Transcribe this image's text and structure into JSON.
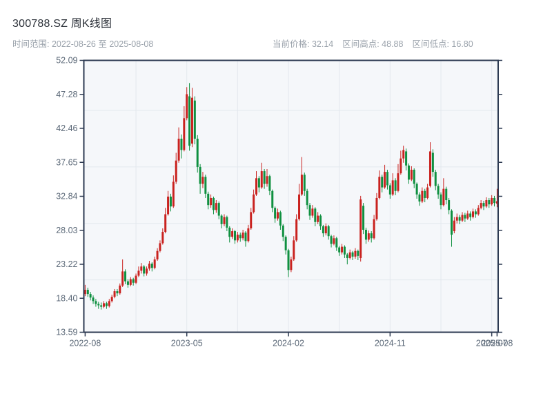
{
  "header": {
    "title": "300788.SZ 周K线图",
    "date_range": "时间范围: 2022-08-26 至 2025-08-08",
    "stats": [
      "当前价格: 32.14",
      "区间高点: 48.88",
      "区间低点: 16.80"
    ]
  },
  "chart_data": {
    "type": "candlestick",
    "title": "300788.SZ 周K线图",
    "frequency": "weekly",
    "date_start": "2022-08-26",
    "date_end": "2025-08-08",
    "current_price": 32.14,
    "period_high": 48.88,
    "period_low": 16.8,
    "x_axis": {
      "tick_labels": [
        "2022-08",
        "2023-05",
        "2024-02",
        "2024-11",
        "2025-07",
        "2025-08"
      ],
      "tick_indices": [
        0,
        38,
        76,
        114,
        152,
        154
      ],
      "minor_tick_indices": [
        19,
        57,
        95,
        133
      ]
    },
    "y_axis": {
      "range": [
        13.59,
        52.09
      ],
      "tick_labels": [
        "52.09",
        "47.28",
        "42.46",
        "37.65",
        "32.84",
        "28.03",
        "23.22",
        "18.40",
        "13.59"
      ],
      "gridline_values": [
        45,
        37,
        29,
        21
      ]
    },
    "colors": {
      "up": "#c9221f",
      "down": "#0f9040",
      "spine": "#2d3a52",
      "grid": "#e3e8ee",
      "plot_bg": "#f5f7fa",
      "tick_text": "#5d6a79"
    },
    "candles_format": [
      "open",
      "close",
      "low",
      "high"
    ],
    "candles": [
      [
        19.0,
        19.6,
        18.7,
        20.3
      ],
      [
        19.6,
        19.0,
        18.6,
        19.9
      ],
      [
        19.0,
        18.5,
        18.1,
        19.3
      ],
      [
        18.5,
        18.0,
        17.6,
        18.8
      ],
      [
        18.0,
        17.6,
        17.2,
        18.3
      ],
      [
        17.6,
        17.4,
        16.9,
        17.9
      ],
      [
        17.4,
        17.2,
        16.8,
        17.8
      ],
      [
        17.2,
        17.7,
        17.0,
        18.0
      ],
      [
        17.7,
        17.3,
        16.9,
        17.9
      ],
      [
        17.3,
        18.0,
        17.1,
        18.3
      ],
      [
        18.0,
        18.6,
        17.8,
        18.9
      ],
      [
        18.6,
        19.4,
        18.4,
        19.7
      ],
      [
        19.4,
        19.1,
        18.7,
        19.7
      ],
      [
        19.1,
        20.2,
        18.9,
        20.5
      ],
      [
        20.2,
        22.2,
        20.0,
        23.9
      ],
      [
        22.2,
        20.8,
        20.4,
        22.5
      ],
      [
        20.8,
        20.3,
        19.9,
        21.1
      ],
      [
        20.3,
        21.1,
        20.1,
        21.4
      ],
      [
        21.1,
        20.6,
        20.2,
        21.3
      ],
      [
        20.6,
        21.6,
        20.4,
        21.9
      ],
      [
        21.6,
        22.3,
        21.4,
        22.9
      ],
      [
        22.3,
        22.9,
        21.9,
        23.4
      ],
      [
        22.9,
        21.9,
        21.5,
        23.1
      ],
      [
        21.9,
        22.6,
        21.6,
        22.9
      ],
      [
        22.6,
        23.3,
        22.3,
        23.7
      ],
      [
        23.3,
        22.7,
        22.2,
        23.5
      ],
      [
        22.7,
        23.9,
        22.5,
        24.3
      ],
      [
        23.9,
        25.1,
        23.7,
        25.5
      ],
      [
        25.1,
        26.2,
        24.9,
        26.6
      ],
      [
        26.2,
        27.8,
        26.0,
        28.3
      ],
      [
        27.8,
        30.3,
        27.6,
        31.2
      ],
      [
        30.3,
        32.8,
        30.1,
        33.6
      ],
      [
        32.8,
        31.4,
        30.7,
        33.2
      ],
      [
        31.4,
        34.9,
        31.2,
        35.8
      ],
      [
        34.9,
        37.9,
        34.6,
        39.0
      ],
      [
        37.9,
        41.0,
        37.6,
        42.6
      ],
      [
        41.0,
        39.4,
        38.2,
        41.6
      ],
      [
        39.4,
        43.9,
        39.2,
        45.6
      ],
      [
        43.9,
        47.3,
        43.6,
        48.3
      ],
      [
        47.0,
        40.0,
        39.3,
        48.88
      ],
      [
        40.3,
        46.8,
        39.8,
        48.2
      ],
      [
        46.4,
        41.0,
        40.2,
        47.0
      ],
      [
        41.0,
        37.0,
        36.2,
        41.5
      ],
      [
        37.0,
        34.6,
        33.2,
        37.4
      ],
      [
        34.6,
        35.6,
        34.0,
        36.3
      ],
      [
        35.6,
        33.2,
        32.6,
        35.9
      ],
      [
        33.2,
        31.6,
        31.0,
        33.5
      ],
      [
        31.6,
        32.6,
        31.2,
        33.1
      ],
      [
        32.6,
        30.9,
        30.3,
        32.8
      ],
      [
        30.9,
        31.9,
        30.5,
        32.3
      ],
      [
        31.9,
        30.1,
        29.6,
        32.1
      ],
      [
        30.1,
        28.9,
        28.3,
        30.3
      ],
      [
        28.9,
        29.9,
        28.6,
        30.3
      ],
      [
        29.9,
        28.4,
        27.9,
        30.1
      ],
      [
        28.4,
        27.1,
        26.3,
        28.6
      ],
      [
        27.1,
        27.9,
        26.8,
        28.3
      ],
      [
        27.9,
        26.6,
        26.1,
        28.1
      ],
      [
        26.6,
        27.4,
        26.3,
        27.8
      ],
      [
        27.4,
        26.9,
        26.4,
        27.7
      ],
      [
        26.9,
        27.7,
        26.6,
        28.1
      ],
      [
        27.7,
        26.5,
        25.7,
        27.9
      ],
      [
        26.5,
        28.3,
        26.3,
        28.8
      ],
      [
        28.3,
        30.6,
        28.1,
        31.2
      ],
      [
        30.6,
        33.1,
        30.4,
        33.8
      ],
      [
        33.1,
        35.4,
        32.9,
        36.4
      ],
      [
        35.4,
        34.1,
        33.4,
        35.7
      ],
      [
        34.1,
        36.4,
        33.9,
        37.6
      ],
      [
        36.4,
        34.6,
        33.9,
        36.7
      ],
      [
        34.6,
        35.7,
        34.2,
        36.7
      ],
      [
        35.7,
        33.6,
        33.0,
        35.9
      ],
      [
        33.6,
        31.2,
        30.6,
        33.8
      ],
      [
        31.2,
        29.7,
        29.1,
        31.4
      ],
      [
        29.7,
        30.6,
        29.4,
        31.1
      ],
      [
        30.6,
        28.7,
        28.1,
        30.8
      ],
      [
        28.7,
        27.1,
        26.5,
        28.9
      ],
      [
        27.1,
        25.2,
        24.6,
        27.3
      ],
      [
        25.2,
        22.4,
        21.4,
        25.4
      ],
      [
        22.4,
        23.9,
        22.1,
        24.3
      ],
      [
        23.9,
        26.6,
        23.7,
        27.2
      ],
      [
        26.6,
        29.6,
        26.4,
        30.3
      ],
      [
        29.6,
        33.1,
        29.4,
        34.6
      ],
      [
        33.1,
        35.9,
        32.9,
        38.4
      ],
      [
        35.9,
        33.6,
        32.9,
        36.2
      ],
      [
        33.6,
        31.6,
        31.0,
        33.9
      ],
      [
        31.6,
        30.1,
        29.5,
        31.9
      ],
      [
        30.1,
        31.1,
        29.8,
        31.6
      ],
      [
        31.1,
        29.2,
        28.6,
        31.3
      ],
      [
        29.2,
        30.1,
        28.9,
        30.6
      ],
      [
        30.1,
        28.6,
        28.1,
        30.3
      ],
      [
        28.6,
        27.6,
        27.1,
        28.8
      ],
      [
        27.6,
        28.6,
        27.3,
        29.0
      ],
      [
        28.6,
        27.2,
        26.7,
        28.8
      ],
      [
        27.2,
        26.1,
        25.6,
        27.4
      ],
      [
        26.1,
        26.9,
        25.9,
        27.3
      ],
      [
        26.9,
        25.6,
        25.1,
        27.1
      ],
      [
        25.6,
        24.9,
        24.4,
        25.8
      ],
      [
        24.9,
        25.7,
        24.6,
        26.1
      ],
      [
        25.7,
        24.6,
        24.1,
        25.9
      ],
      [
        24.6,
        24.1,
        23.2,
        24.8
      ],
      [
        24.1,
        24.9,
        23.9,
        25.3
      ],
      [
        24.9,
        24.3,
        23.8,
        25.1
      ],
      [
        24.3,
        25.1,
        24.0,
        25.5
      ],
      [
        25.1,
        24.4,
        23.8,
        25.3
      ],
      [
        24.1,
        32.4,
        23.6,
        32.9
      ],
      [
        31.5,
        28.1,
        27.5,
        31.9
      ],
      [
        28.1,
        26.7,
        26.1,
        28.4
      ],
      [
        26.7,
        27.6,
        26.4,
        28.0
      ],
      [
        27.6,
        26.9,
        26.3,
        27.9
      ],
      [
        26.9,
        29.6,
        26.7,
        30.2
      ],
      [
        29.6,
        32.6,
        29.4,
        33.3
      ],
      [
        32.6,
        35.6,
        32.4,
        36.5
      ],
      [
        35.6,
        34.1,
        33.4,
        35.9
      ],
      [
        34.1,
        36.3,
        33.9,
        37.3
      ],
      [
        36.3,
        34.4,
        33.8,
        36.6
      ],
      [
        34.4,
        33.1,
        32.5,
        34.7
      ],
      [
        33.1,
        35.1,
        32.9,
        36.1
      ],
      [
        35.1,
        33.6,
        33.0,
        35.4
      ],
      [
        33.6,
        36.1,
        33.4,
        37.4
      ],
      [
        36.1,
        38.2,
        35.9,
        39.3
      ],
      [
        38.2,
        39.4,
        37.6,
        40.0
      ],
      [
        39.2,
        37.2,
        36.5,
        39.6
      ],
      [
        37.2,
        35.2,
        34.6,
        37.5
      ],
      [
        35.2,
        36.6,
        35.0,
        37.1
      ],
      [
        36.6,
        34.6,
        34.0,
        36.8
      ],
      [
        34.6,
        33.1,
        32.5,
        34.8
      ],
      [
        33.1,
        32.1,
        31.5,
        33.4
      ],
      [
        32.1,
        33.6,
        31.9,
        34.1
      ],
      [
        33.6,
        32.6,
        32.0,
        33.9
      ],
      [
        32.6,
        34.1,
        32.4,
        34.6
      ],
      [
        34.3,
        39.2,
        34.1,
        40.5
      ],
      [
        39.0,
        36.3,
        35.6,
        39.5
      ],
      [
        36.3,
        34.3,
        33.7,
        36.6
      ],
      [
        34.3,
        33.1,
        32.5,
        34.6
      ],
      [
        33.1,
        31.6,
        31.0,
        33.4
      ],
      [
        31.6,
        33.9,
        31.4,
        35.4
      ],
      [
        33.9,
        32.3,
        31.7,
        34.2
      ],
      [
        32.3,
        30.9,
        30.3,
        32.6
      ],
      [
        30.8,
        27.4,
        25.7,
        31.0
      ],
      [
        27.9,
        29.4,
        27.6,
        29.9
      ],
      [
        29.4,
        29.9,
        29.0,
        30.4
      ],
      [
        29.9,
        29.4,
        28.9,
        30.2
      ],
      [
        29.4,
        30.2,
        29.2,
        30.6
      ],
      [
        30.2,
        29.7,
        29.2,
        30.5
      ],
      [
        29.7,
        30.4,
        29.5,
        30.8
      ],
      [
        30.4,
        29.9,
        29.4,
        30.7
      ],
      [
        29.9,
        30.7,
        29.7,
        31.1
      ],
      [
        30.7,
        30.3,
        29.8,
        31.0
      ],
      [
        30.3,
        31.2,
        30.1,
        31.6
      ],
      [
        31.2,
        31.9,
        31.0,
        32.3
      ],
      [
        31.9,
        31.4,
        30.9,
        32.2
      ],
      [
        31.4,
        32.3,
        31.2,
        32.7
      ],
      [
        32.3,
        31.7,
        31.2,
        32.6
      ],
      [
        31.7,
        32.6,
        31.5,
        33.0
      ],
      [
        32.6,
        31.9,
        31.4,
        32.9
      ],
      [
        31.8,
        32.14,
        31.3,
        33.9
      ]
    ]
  }
}
